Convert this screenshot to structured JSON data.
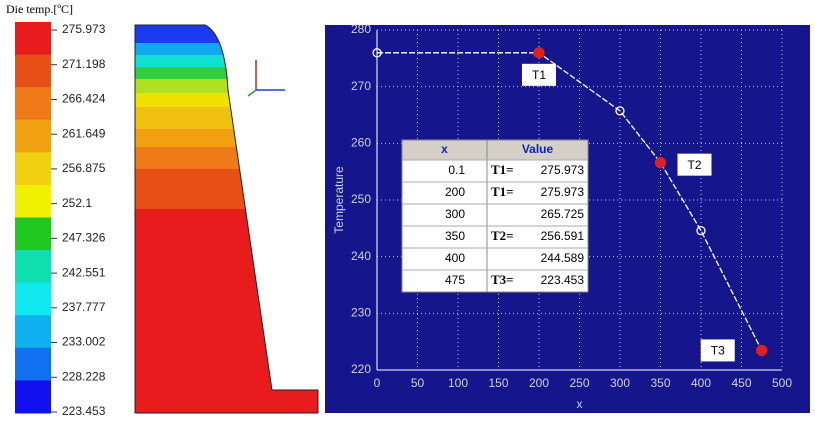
{
  "legend": {
    "title": "Die temp.[ºC]",
    "labels": [
      275.973,
      271.198,
      266.424,
      261.649,
      256.875,
      252.1,
      247.326,
      242.551,
      237.777,
      233.002,
      228.228,
      223.453
    ],
    "colors": [
      "#e81c1c",
      "#e85018",
      "#f07a18",
      "#f0a010",
      "#f0d010",
      "#f0f000",
      "#20c820",
      "#10e0b0",
      "#10e8f0",
      "#10b0f0",
      "#1070f0",
      "#1010f0"
    ]
  },
  "chart_data": {
    "type": "line",
    "xlabel": "x",
    "ylabel": "Temperature",
    "x": [
      0.1,
      200,
      300,
      350,
      400,
      475
    ],
    "series": [
      {
        "color": "#ffffff",
        "values": [
          275.973,
          275.973,
          265.725,
          256.591,
          244.589,
          223.453
        ]
      }
    ],
    "point_labels": [
      null,
      "T1",
      null,
      "T2",
      null,
      "T3"
    ],
    "highlight_color": "#e02020",
    "table_headers": [
      "x",
      "Value"
    ],
    "table_labels": [
      "T1=",
      "T1=",
      null,
      "T2=",
      null,
      "T3="
    ],
    "xlim": [
      0,
      500
    ],
    "xticks": [
      0,
      50,
      100,
      150,
      200,
      250,
      300,
      350,
      400,
      450,
      500
    ],
    "ylim": [
      220,
      280
    ],
    "yticks": [
      220,
      230,
      240,
      250,
      260,
      270,
      280
    ],
    "grid": true
  }
}
